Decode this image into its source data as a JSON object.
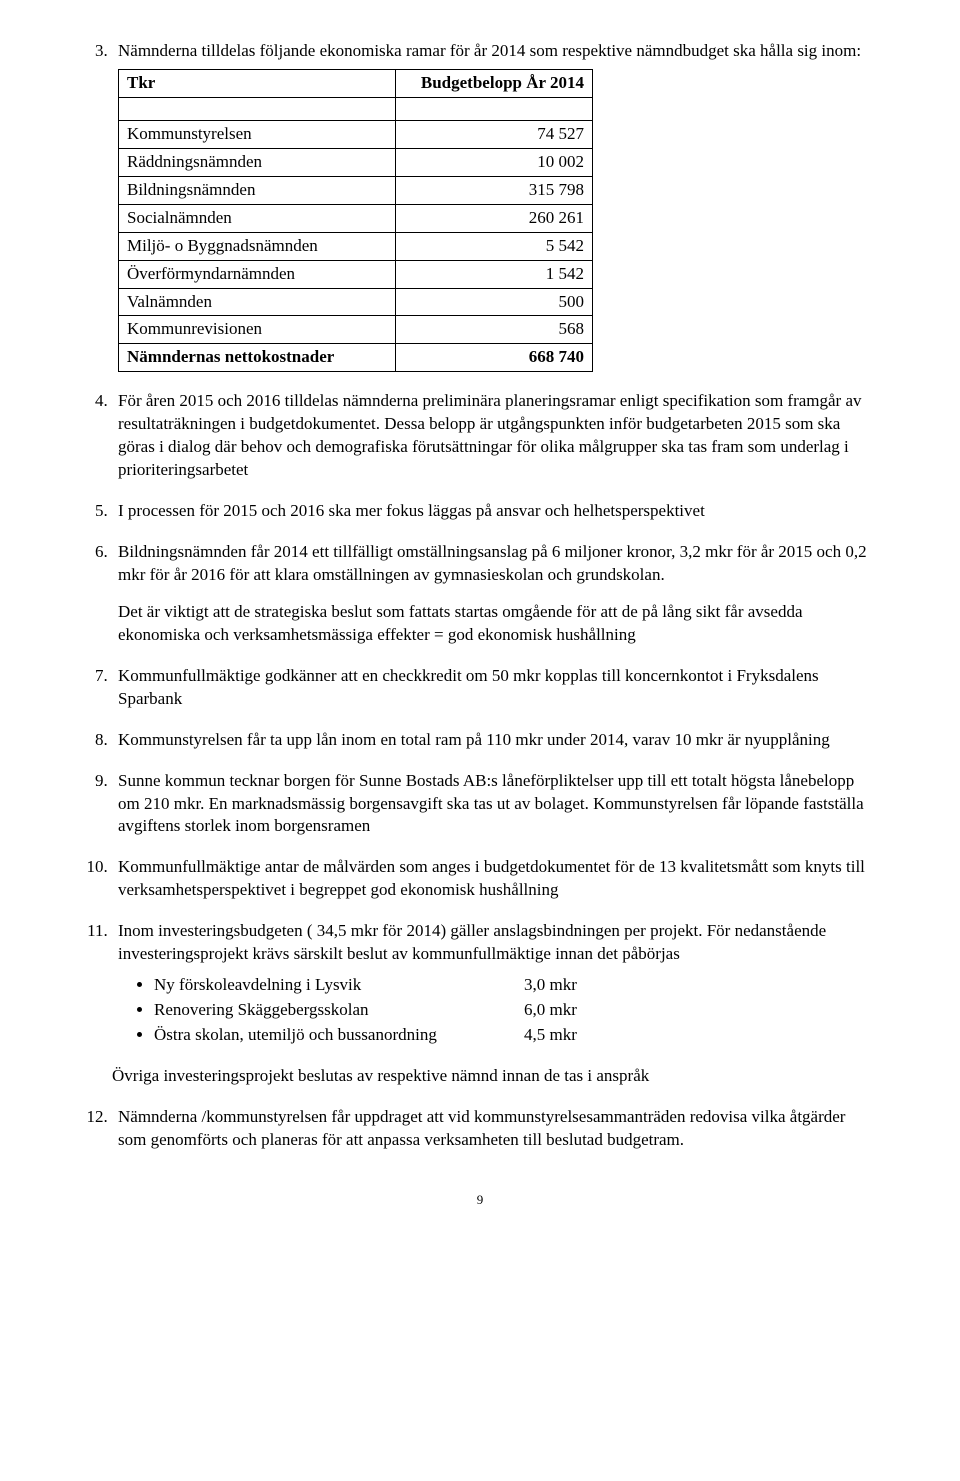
{
  "item3": {
    "intro": "Nämnderna tilldelas följande ekonomiska ramar för år 2014 som respektive nämndbudget ska hålla sig inom:",
    "table": {
      "header_left": "Tkr",
      "header_right": "Budgetbelopp År 2014",
      "rows": [
        {
          "label": "Kommunstyrelsen",
          "value": "74 527"
        },
        {
          "label": "Räddningsnämnden",
          "value": "10 002"
        },
        {
          "label": "Bildningsnämnden",
          "value": "315 798"
        },
        {
          "label": "Socialnämnden",
          "value": "260 261"
        },
        {
          "label": "Miljö- o Byggnadsnämnden",
          "value": "5 542"
        },
        {
          "label": "Överförmyndarnämnden",
          "value": "1 542"
        },
        {
          "label": "Valnämnden",
          "value": "500"
        },
        {
          "label": "Kommunrevisionen",
          "value": "568"
        }
      ],
      "total_label": "Nämndernas nettokostnader",
      "total_value": "668 740"
    }
  },
  "item4": "För åren 2015 och 2016 tilldelas nämnderna preliminära planeringsramar enligt specifikation som framgår av resultaträkningen i budgetdokumentet. Dessa belopp är utgångspunkten inför budgetarbeten 2015 som ska göras i dialog där behov och demografiska förutsättningar för olika målgrupper ska tas fram som underlag i prioriteringsarbetet",
  "item5": "I processen för 2015 och 2016 ska mer fokus läggas på ansvar och helhetsperspektivet",
  "item6": {
    "p1": "Bildningsnämnden får 2014 ett tillfälligt omställningsanslag på 6 miljoner kronor, 3,2 mkr för år 2015 och 0,2 mkr för år 2016 för att klara omställningen av gymnasieskolan och grundskolan.",
    "p2": "Det är viktigt att de strategiska beslut som fattats startas omgående för att de på lång sikt får avsedda ekonomiska och verksamhetsmässiga effekter  = god ekonomisk hushållning"
  },
  "item7": "Kommunfullmäktige godkänner att en checkkredit om 50 mkr kopplas till koncernkontot i Fryksdalens Sparbank",
  "item8": "Kommunstyrelsen får ta upp lån inom en total ram på 110 mkr under 2014, varav 10 mkr är nyupplåning",
  "item9": "Sunne kommun tecknar borgen för Sunne Bostads AB:s låneförpliktelser upp till ett totalt högsta lånebelopp om 210 mkr. En marknadsmässig borgensavgift ska tas ut av bolaget. Kommunstyrelsen får löpande fastställa avgiftens storlek inom borgensramen",
  "item10": "Kommunfullmäktige antar de målvärden som anges i budgetdokumentet för de 13 kvalitetsmått som knyts till verksamhetsperspektivet i begreppet god ekonomisk hushållning",
  "item11": {
    "p1": "Inom investeringsbudgeten ( 34,5 mkr för 2014) gäller anslagsbindningen per projekt. För nedanstående investeringsprojekt krävs särskilt beslut av kommunfullmäktige innan det påbörjas",
    "bullets": [
      {
        "text": "Ny förskoleavdelning i Lysvik",
        "amt": "3,0 mkr"
      },
      {
        "text": "Renovering Skäggebergsskolan",
        "amt": "6,0 mkr"
      },
      {
        "text": "Östra skolan, utemiljö och bussanordning",
        "amt": "4,5 mkr"
      }
    ]
  },
  "post11": "Övriga investeringsprojekt beslutas av respektive nämnd innan de tas i anspråk",
  "item12": "Nämnderna /kommunstyrelsen får uppdraget att vid kommunstyrelsesammanträden redovisa vilka åtgärder som genomförts och planeras för att anpassa verksamheten till beslutad budgetram.",
  "page_number": "9"
}
